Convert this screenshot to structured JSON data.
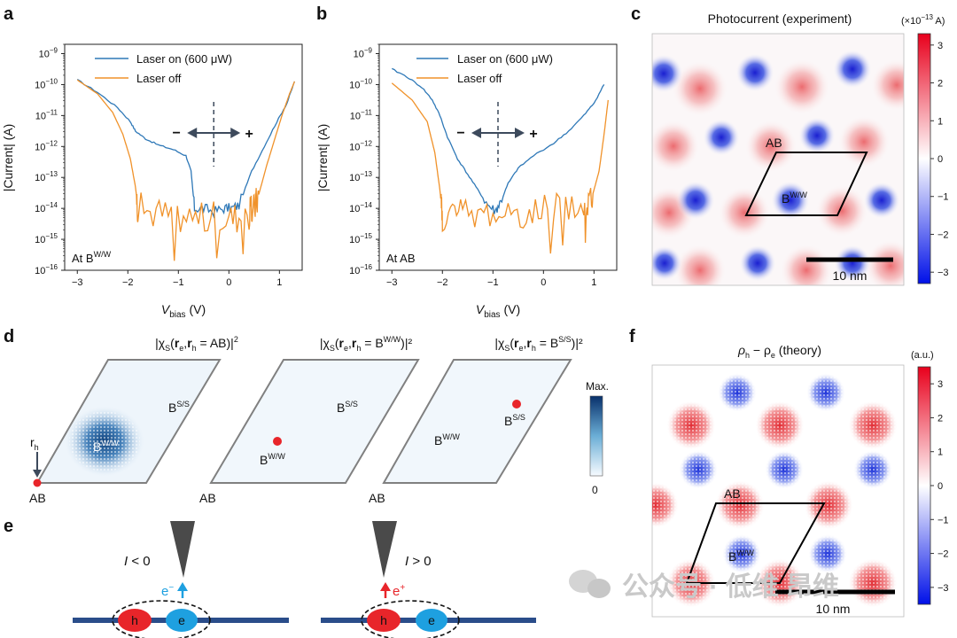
{
  "panel_labels": {
    "a": "a",
    "b": "b",
    "c": "c",
    "d": "d",
    "e": "e",
    "f": "f"
  },
  "chart_data": [
    {
      "id": "a",
      "type": "line",
      "yscale": "log",
      "xlim": [
        -3.25,
        1.45
      ],
      "ylim": [
        1e-16,
        2e-09
      ],
      "xticks": [
        -3,
        -2,
        -1,
        0,
        1
      ],
      "xticklabels": [
        "−3",
        "−2",
        "−1",
        "0",
        "1"
      ],
      "yticks_exp": [
        -16,
        -15,
        -14,
        -13,
        -12,
        -11,
        -10,
        -9
      ],
      "ylabel": "|Current| (A)",
      "xlabel_main": "V",
      "xlabel_sub": "bias",
      "xlabel_unit": " (V)",
      "annotation": "At B",
      "annotation_sup": "W/W",
      "arrow_minus": "−",
      "arrow_plus": "+",
      "dashed_x": -0.3,
      "series": [
        {
          "name": "Laser on (600 μW)",
          "color": "#2e78b7",
          "noisy": false,
          "x": [
            -3.0,
            -2.6,
            -2.2,
            -1.95,
            -1.85,
            -1.65,
            -1.4,
            -1.1,
            -0.85,
            -0.75,
            -0.68,
            -0.5,
            -0.3,
            -0.1,
            0.05,
            0.2,
            0.45,
            0.7,
            0.95,
            1.15,
            1.3
          ],
          "y_exp": [
            -9.85,
            -10.25,
            -10.75,
            -11.2,
            -11.5,
            -11.75,
            -11.95,
            -12.1,
            -12.3,
            -12.8,
            -14.0,
            -14.0,
            -14.1,
            -14.0,
            -14.0,
            -13.9,
            -12.8,
            -12.0,
            -11.2,
            -10.6,
            -9.9
          ]
        },
        {
          "name": "Laser off",
          "color": "#f0922a",
          "noisy": true,
          "x": [
            -3.0,
            -2.6,
            -2.3,
            -2.1,
            -1.95,
            -1.85,
            -1.8,
            -1.2,
            -0.6,
            0.0,
            0.4,
            0.5,
            0.6,
            0.75,
            0.9,
            1.05,
            1.2,
            1.3
          ],
          "y_exp": [
            -9.85,
            -10.3,
            -10.9,
            -11.6,
            -12.4,
            -13.3,
            -14.0,
            -14.2,
            -14.3,
            -14.3,
            -14.2,
            -14.0,
            -13.5,
            -12.6,
            -11.8,
            -11.0,
            -10.3,
            -9.9
          ]
        }
      ]
    },
    {
      "id": "b",
      "type": "line",
      "yscale": "log",
      "xlim": [
        -3.25,
        1.45
      ],
      "ylim": [
        1e-16,
        2e-09
      ],
      "xticks": [
        -3,
        -2,
        -1,
        0,
        1
      ],
      "xticklabels": [
        "−3",
        "−2",
        "−1",
        "0",
        "1"
      ],
      "yticks_exp": [
        -16,
        -15,
        -14,
        -13,
        -12,
        -11,
        -10,
        -9
      ],
      "ylabel": "|Current| (A)",
      "xlabel_main": "V",
      "xlabel_sub": "bias",
      "xlabel_unit": " (V)",
      "annotation": "At AB",
      "annotation_sup": "",
      "arrow_minus": "−",
      "arrow_plus": "+",
      "dashed_x": -0.9,
      "series": [
        {
          "name": "Laser on (600 μW)",
          "color": "#2e78b7",
          "noisy": false,
          "x": [
            -3.0,
            -2.7,
            -2.4,
            -2.2,
            -2.05,
            -1.9,
            -1.7,
            -1.5,
            -1.3,
            -1.1,
            -0.95,
            -0.85,
            -0.7,
            -0.5,
            -0.2,
            0.2,
            0.5,
            0.8,
            1.0,
            1.2
          ],
          "y_exp": [
            -9.5,
            -9.75,
            -10.1,
            -10.5,
            -11.0,
            -11.7,
            -12.4,
            -12.9,
            -13.4,
            -13.9,
            -14.1,
            -13.8,
            -13.2,
            -12.7,
            -12.3,
            -11.9,
            -11.5,
            -11.0,
            -10.6,
            -10.0
          ]
        },
        {
          "name": "Laser off",
          "color": "#f0922a",
          "noisy": true,
          "x": [
            -3.0,
            -2.6,
            -2.3,
            -2.15,
            -2.05,
            -2.0,
            -1.6,
            -1.0,
            -0.4,
            0.2,
            0.8,
            0.95,
            1.1,
            1.2,
            1.28
          ],
          "y_exp": [
            -9.95,
            -10.5,
            -11.2,
            -12.2,
            -13.4,
            -14.2,
            -14.2,
            -14.2,
            -14.1,
            -14.0,
            -14.0,
            -13.7,
            -12.8,
            -11.6,
            -10.5
          ]
        }
      ]
    },
    {
      "id": "c",
      "type": "heatmap",
      "title": "Photocurrent (experiment)",
      "colorbar_unit": "(×10",
      "colorbar_unit_sup": "−13",
      "colorbar_unit_end": " A)",
      "colorbar_range": [
        -3.3,
        3.3
      ],
      "colorbar_ticks": [
        3,
        2,
        1,
        0,
        -1,
        -2,
        -3
      ],
      "colorbar_ticklabels": [
        "3",
        "2",
        "1",
        "0",
        "−1",
        "−2",
        "−3"
      ],
      "scalebar_label": "10 nm",
      "cell_label_ab": "AB",
      "cell_label_b": "B",
      "cell_label_b_sup": "W/W"
    },
    {
      "id": "f",
      "type": "heatmap",
      "title_rho": "ρ",
      "title_h": "h",
      "title_minus": " − ρ",
      "title_e": "e",
      "title_end": " (theory)",
      "colorbar_unit": "(a.u.)",
      "colorbar_range": [
        -3.5,
        3.5
      ],
      "colorbar_ticks": [
        3,
        2,
        1,
        0,
        -1,
        -2,
        -3
      ],
      "colorbar_ticklabels": [
        "3",
        "2",
        "1",
        "0",
        "−1",
        "−2",
        "−3"
      ],
      "scalebar_label": "10 nm",
      "cell_label_ab": "AB",
      "cell_label_b": "B",
      "cell_label_b_sup": "W/W"
    }
  ],
  "panel_d": {
    "titles": [
      {
        "pre": "|χ",
        "sub1": "S",
        "mid1": "(",
        "b1": "r",
        "sub2": "e",
        "mid2": ",",
        "b2": "r",
        "sub3": "h",
        "mid3": " = AB)|",
        "sup": "2",
        "sup2": ""
      },
      {
        "pre": "|χ",
        "sub1": "S",
        "mid1": "(",
        "b1": "r",
        "sub2": "e",
        "mid2": ",",
        "b2": "r",
        "sub3": "h",
        "mid3": " = B",
        "sup": "W/W",
        "sup2": ")|²"
      },
      {
        "pre": "|χ",
        "sub1": "S",
        "mid1": "(",
        "b1": "r",
        "sub2": "e",
        "mid2": ",",
        "b2": "r",
        "sub3": "h",
        "mid3": " = B",
        "sup": "S/S",
        "sup2": ")|²"
      }
    ],
    "site_b": "B",
    "site_ss": "S/S",
    "site_ww": "W/W",
    "site_ab": "AB",
    "rh": "r",
    "rh_sub": "h",
    "colorbar_max": "Max.",
    "colorbar_min": "0"
  },
  "panel_e": {
    "left_condition_i": "I",
    "left_condition_rest": " < 0",
    "right_condition_i": "I",
    "right_condition_rest": " > 0",
    "electron": "e",
    "electron_sup": "−",
    "hole_carrier": "e",
    "hole_carrier_sup": "+",
    "hole": "h",
    "elec": "e"
  },
  "watermark": "公众号 · 低维 昂维",
  "colors": {
    "blue": "#2e78b7",
    "orange": "#f0922a",
    "red": "#e8252a",
    "navy": "#1f3f8a",
    "heat_blue": "#1a2fd8",
    "heat_red": "#e3242b"
  }
}
